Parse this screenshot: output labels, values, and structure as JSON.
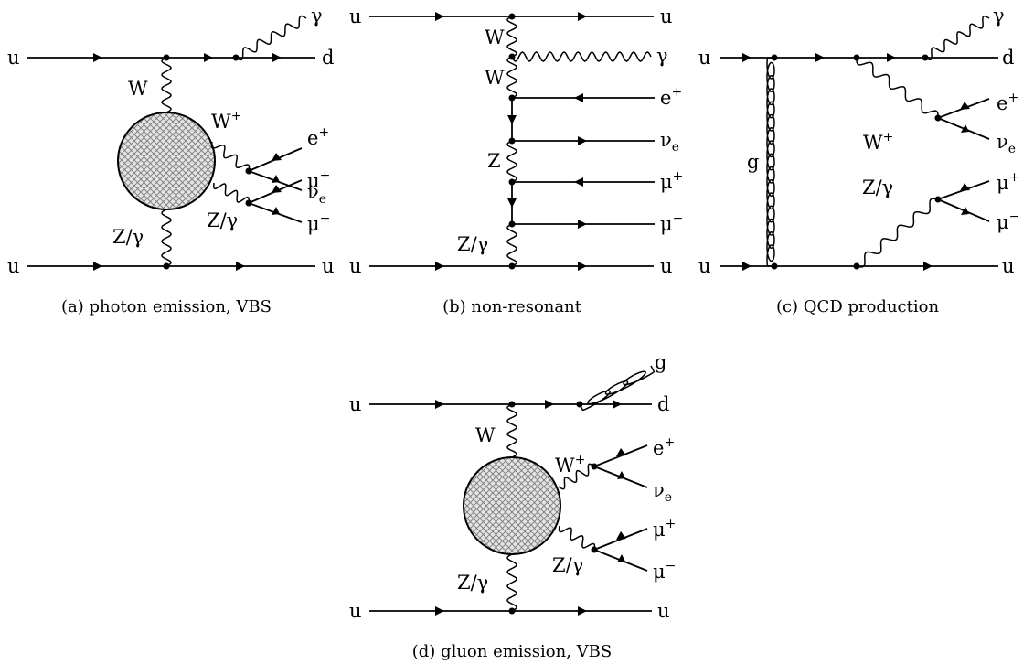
{
  "panels": {
    "a": {
      "caption": "(a) photon emission, VBS",
      "quarks": {
        "in_top": "u",
        "out_top": "d",
        "in_bottom": "u",
        "out_bottom": "u"
      },
      "boson_top": "W",
      "boson_bottom": "Z/γ",
      "photon": "γ",
      "w_decay": "W",
      "w_decay_sup": "+",
      "z_decay": "Z/γ",
      "lepton_e": "e",
      "lepton_e_sup": "+",
      "neutrino": "ν",
      "neutrino_sub": "e",
      "muon_plus": "μ",
      "muon_plus_sup": "+",
      "muon_minus": "μ",
      "muon_minus_sup": "−"
    },
    "b": {
      "caption": "(b) non-resonant",
      "quarks": {
        "in_top": "u",
        "out_top": "u",
        "in_bottom": "u",
        "out_bottom": "u"
      },
      "w1": "W",
      "w2": "W",
      "z": "Z",
      "zg": "Z/γ",
      "photon": "γ",
      "lepton_e": "e",
      "lepton_e_sup": "+",
      "neutrino": "ν",
      "neutrino_sub": "e",
      "muon_plus": "μ",
      "muon_plus_sup": "+",
      "muon_minus": "μ",
      "muon_minus_sup": "−"
    },
    "c": {
      "caption": "(c) QCD production",
      "quarks": {
        "in_top": "u",
        "out_top": "d",
        "in_bottom": "u",
        "out_bottom": "u"
      },
      "gluon": "g",
      "photon": "γ",
      "w_decay": "W",
      "w_decay_sup": "+",
      "z_decay": "Z/γ",
      "lepton_e": "e",
      "lepton_e_sup": "+",
      "neutrino": "ν",
      "neutrino_sub": "e",
      "muon_plus": "μ",
      "muon_plus_sup": "+",
      "muon_minus": "μ",
      "muon_minus_sup": "−"
    },
    "d": {
      "caption": "(d) gluon emission, VBS",
      "quarks": {
        "in_top": "u",
        "out_top": "d",
        "in_bottom": "u",
        "out_bottom": "u"
      },
      "gluon": "g",
      "boson_top": "W",
      "boson_bottom": "Z/γ",
      "w_decay": "W",
      "w_decay_sup": "+",
      "z_decay": "Z/γ",
      "lepton_e": "e",
      "lepton_e_sup": "+",
      "neutrino": "ν",
      "neutrino_sub": "e",
      "muon_plus": "μ",
      "muon_plus_sup": "+",
      "muon_minus": "μ",
      "muon_minus_sup": "−"
    }
  }
}
